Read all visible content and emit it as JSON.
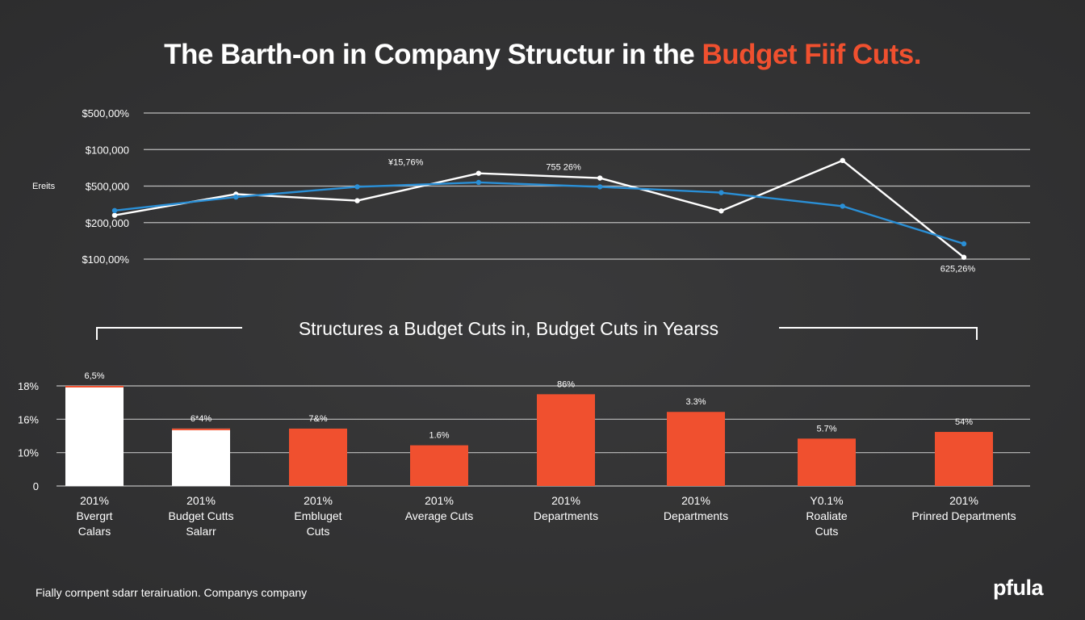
{
  "title": {
    "main": "The Barth-on in Company Structur in the ",
    "accent": "Budget Fiif Cuts."
  },
  "colors": {
    "background": "#333334",
    "accent": "#f0502f",
    "line_white": "#ffffff",
    "line_blue": "#2a8fd6",
    "grid": "#bdbdbd"
  },
  "chart_data": [
    {
      "type": "line",
      "ylabel": "Ereits",
      "y_tick_labels": [
        "$500,00%",
        "$100,000",
        "$500,000",
        "$200,000",
        "$100,00%"
      ],
      "ylim": [
        0,
        4
      ],
      "grid": true,
      "series": [
        {
          "name": "white",
          "x": [
            0,
            1,
            2,
            3,
            4,
            5,
            6,
            7
          ],
          "values": [
            1.2,
            1.78,
            1.6,
            2.35,
            2.22,
            1.32,
            2.7,
            0.05
          ]
        },
        {
          "name": "blue",
          "x": [
            0,
            1,
            2,
            3,
            4,
            5,
            6,
            7
          ],
          "values": [
            1.33,
            1.7,
            1.98,
            2.1,
            1.98,
            1.82,
            1.45,
            0.42
          ]
        }
      ],
      "annotations": [
        {
          "text": "¥15,76%",
          "x": 2.4,
          "y": 2.35
        },
        {
          "text": "755 26%",
          "x": 3.7,
          "y": 2.22
        },
        {
          "text": "625,26%",
          "x": 6.95,
          "y": 0.05
        }
      ]
    },
    {
      "type": "bar",
      "title": "Structures a Budget Cuts in, Budget Cuts in Yearss",
      "y_tick_labels": [
        "0",
        "10%",
        "16%",
        "18%"
      ],
      "ylim": [
        0,
        3
      ],
      "categories": [
        {
          "year": "201%",
          "line1": "Bvergrt",
          "line2": "Calars"
        },
        {
          "year": "201%",
          "line1": "Budget Cutts",
          "line2": "Salarr"
        },
        {
          "year": "201%",
          "line1": "Embluget",
          "line2": "Cuts"
        },
        {
          "year": "201%",
          "line1": "Average Cuts",
          "line2": ""
        },
        {
          "year": "201%",
          "line1": "Departments",
          "line2": ""
        },
        {
          "year": "201%",
          "line1": "Departments",
          "line2": ""
        },
        {
          "year": "Y0.1%",
          "line1": "Roaliate",
          "line2": "Cuts"
        },
        {
          "year": "201%",
          "line1": "Prinred Departments",
          "line2": ""
        }
      ],
      "values": [
        3.0,
        1.72,
        1.72,
        1.22,
        2.75,
        2.22,
        1.42,
        1.62
      ],
      "bar_colors": [
        "#ffffff",
        "#ffffff",
        "#f0502f",
        "#f0502f",
        "#f0502f",
        "#f0502f",
        "#f0502f",
        "#f0502f"
      ],
      "data_labels": [
        "6,5%",
        "6*4%",
        "7&%",
        "1.6%",
        "86%",
        "3.3%",
        "5.7%",
        "54%"
      ]
    }
  ],
  "footer": "Fially cornpent sdarr terairuation. Companys company",
  "logo": "pfula"
}
